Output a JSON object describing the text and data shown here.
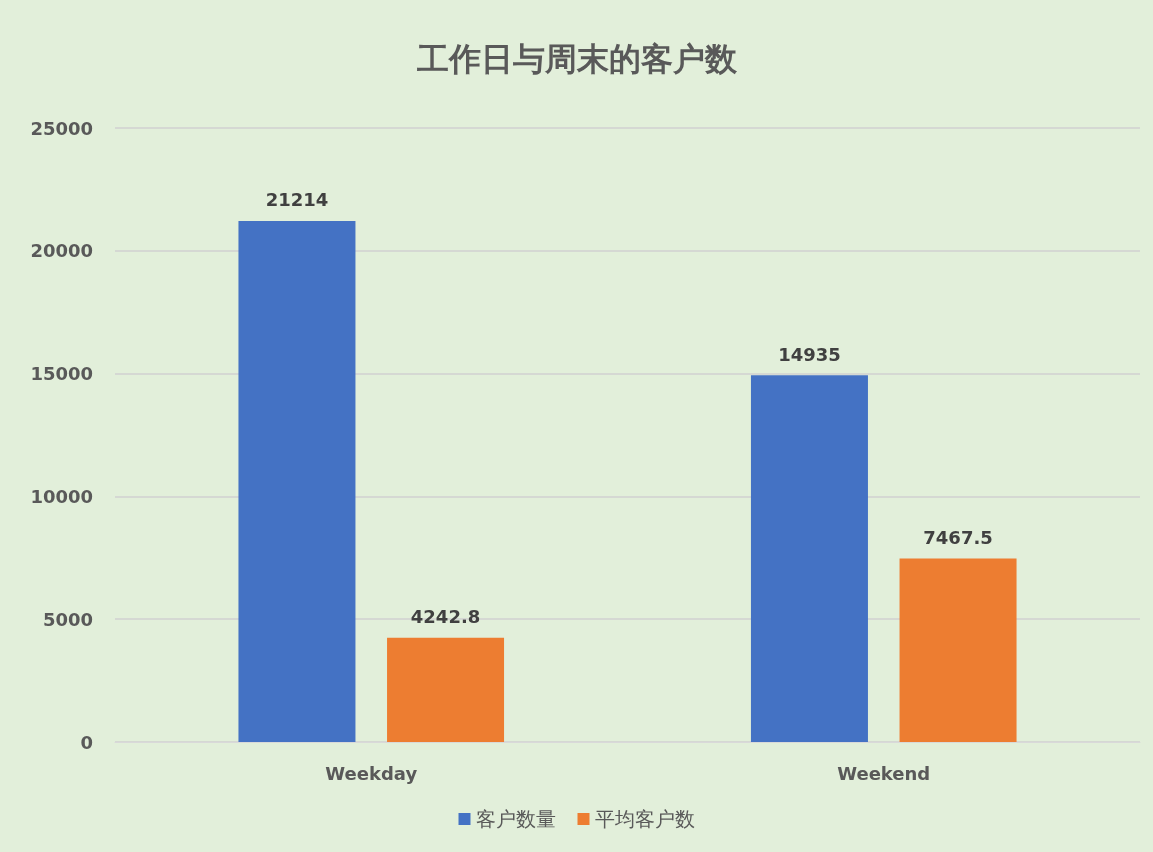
{
  "chart_data": {
    "type": "bar",
    "title": "工作日与周末的客户数",
    "categories": [
      "Weekday",
      "Weekend"
    ],
    "series": [
      {
        "name": "客户数量",
        "color": "#4472c4",
        "values": [
          21214,
          14935
        ]
      },
      {
        "name": "平均客户数",
        "color": "#ed7d31",
        "values": [
          4242.8,
          7467.5
        ]
      }
    ],
    "ylim": [
      0,
      25000
    ],
    "yticks": [
      0,
      5000,
      10000,
      15000,
      20000,
      25000
    ],
    "grid": "y",
    "legend": "bottom",
    "data_labels": true
  }
}
